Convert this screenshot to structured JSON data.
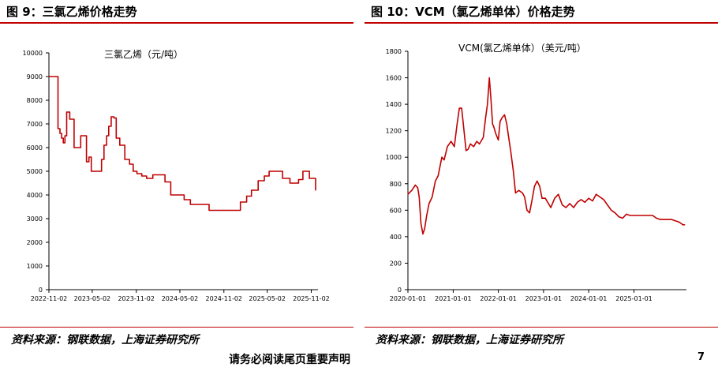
{
  "left_figure": {
    "heading": "图 9：三氯乙烯价格走势",
    "source": "资料来源：钢联数据，上海证券研究所"
  },
  "right_figure": {
    "heading": "图 10：VCM（氯乙烯单体）价格走势",
    "source": "资料来源：钢联数据，上海证券研究所"
  },
  "footer": {
    "text": "请务必阅读尾页重要声明",
    "page": "7"
  },
  "colors": {
    "accent": "#c00000",
    "line": "#c00000"
  },
  "chart_data": [
    {
      "type": "line",
      "title": "三氯乙烯（元/吨）",
      "xlabel": "",
      "ylabel": "",
      "xlim": [
        "2022-11-02",
        "2025-11-30"
      ],
      "ylim": [
        0,
        10000
      ],
      "yticks": [
        0,
        1000,
        2000,
        3000,
        4000,
        5000,
        6000,
        7000,
        8000,
        9000,
        10000
      ],
      "xticks": [
        "2022-11-02",
        "2023-05-02",
        "2023-11-02",
        "2024-05-02",
        "2024-11-02",
        "2025-05-02",
        "2025-11-02"
      ],
      "step": true,
      "grid": false,
      "x": [
        "2022-11-02",
        "2022-12-10",
        "2022-12-18",
        "2022-12-25",
        "2023-01-01",
        "2023-01-08",
        "2023-01-15",
        "2023-01-28",
        "2023-02-15",
        "2023-02-22",
        "2023-03-15",
        "2023-04-08",
        "2023-04-18",
        "2023-04-28",
        "2023-05-10",
        "2023-06-10",
        "2023-06-20",
        "2023-07-01",
        "2023-07-10",
        "2023-07-20",
        "2023-08-01",
        "2023-08-10",
        "2023-08-25",
        "2023-09-15",
        "2023-10-05",
        "2023-10-20",
        "2023-11-05",
        "2023-11-25",
        "2023-12-15",
        "2024-01-10",
        "2024-02-01",
        "2024-03-01",
        "2024-03-25",
        "2024-05-20",
        "2024-06-15",
        "2024-07-25",
        "2024-09-01",
        "2024-10-25",
        "2025-01-10",
        "2025-02-05",
        "2025-02-25",
        "2025-03-25",
        "2025-04-20",
        "2025-05-10",
        "2025-07-05",
        "2025-08-05",
        "2025-09-10",
        "2025-09-28",
        "2025-10-25",
        "2025-11-20"
      ],
      "values": [
        9000,
        6800,
        6600,
        6400,
        6200,
        6500,
        7500,
        7200,
        6000,
        6000,
        6500,
        5400,
        5600,
        5000,
        5000,
        5500,
        6100,
        6500,
        6900,
        7300,
        7250,
        6400,
        6100,
        5500,
        5300,
        5000,
        4900,
        4800,
        4700,
        4850,
        4850,
        4550,
        4000,
        3800,
        3600,
        3600,
        3350,
        3350,
        3700,
        3950,
        4200,
        4600,
        4800,
        5000,
        4700,
        4500,
        4650,
        5000,
        4700,
        4200
      ],
      "series": [
        {
          "name": "",
          "color": "#c00000"
        }
      ]
    },
    {
      "type": "line",
      "title": "VCM(氯乙烯单体）（美元/吨）",
      "xlabel": "",
      "ylabel": "",
      "xlim": [
        "2020-01-01",
        "2026-03-01"
      ],
      "ylim": [
        0,
        1800
      ],
      "yticks": [
        0,
        200,
        400,
        600,
        800,
        1000,
        1200,
        1400,
        1600,
        1800
      ],
      "xticks": [
        "2020-01-01",
        "2021-01-01",
        "2022-01-01",
        "2023-01-01",
        "2024-01-01",
        "2025-01-01"
      ],
      "step": false,
      "grid": false,
      "x": [
        "2020-01-01",
        "2020-02-01",
        "2020-03-01",
        "2020-03-20",
        "2020-04-01",
        "2020-04-15",
        "2020-05-01",
        "2020-05-15",
        "2020-06-01",
        "2020-06-20",
        "2020-07-15",
        "2020-08-10",
        "2020-09-01",
        "2020-10-01",
        "2020-10-20",
        "2020-11-15",
        "2020-12-15",
        "2021-01-10",
        "2021-02-01",
        "2021-02-20",
        "2021-03-10",
        "2021-03-25",
        "2021-04-15",
        "2021-05-01",
        "2021-05-20",
        "2021-06-15",
        "2021-07-10",
        "2021-08-01",
        "2021-09-01",
        "2021-09-20",
        "2021-10-05",
        "2021-10-20",
        "2021-11-01",
        "2021-11-15",
        "2021-11-25",
        "2021-12-10",
        "2022-01-01",
        "2022-01-15",
        "2022-02-01",
        "2022-02-20",
        "2022-03-10",
        "2022-03-25",
        "2022-04-10",
        "2022-05-01",
        "2022-05-20",
        "2022-06-15",
        "2022-07-15",
        "2022-08-01",
        "2022-08-20",
        "2022-09-10",
        "2022-10-01",
        "2022-10-20",
        "2022-11-10",
        "2022-12-01",
        "2022-12-20",
        "2023-01-15",
        "2023-02-10",
        "2023-03-01",
        "2023-04-01",
        "2023-05-01",
        "2023-06-01",
        "2023-07-01",
        "2023-08-01",
        "2023-09-01",
        "2023-10-01",
        "2023-11-01",
        "2023-12-01",
        "2024-01-01",
        "2024-02-01",
        "2024-03-01",
        "2024-04-01",
        "2024-05-01",
        "2024-06-01",
        "2024-07-01",
        "2024-08-01",
        "2024-09-01",
        "2024-10-01",
        "2024-11-01",
        "2024-12-01",
        "2025-01-01",
        "2025-02-01",
        "2025-03-01",
        "2025-04-01",
        "2025-05-01",
        "2025-06-01",
        "2025-07-01",
        "2025-08-01",
        "2025-09-01",
        "2025-10-01",
        "2025-11-01",
        "2025-12-01",
        "2026-01-01",
        "2026-02-01",
        "2026-02-15"
      ],
      "values": [
        720,
        750,
        790,
        770,
        700,
        500,
        420,
        460,
        560,
        650,
        700,
        820,
        860,
        1000,
        980,
        1080,
        1120,
        1080,
        1250,
        1370,
        1370,
        1240,
        1050,
        1060,
        1100,
        1080,
        1120,
        1100,
        1150,
        1300,
        1400,
        1600,
        1450,
        1250,
        1230,
        1180,
        1130,
        1270,
        1300,
        1320,
        1250,
        1150,
        1050,
        900,
        730,
        750,
        730,
        700,
        600,
        580,
        680,
        780,
        820,
        780,
        690,
        690,
        650,
        620,
        690,
        720,
        640,
        620,
        650,
        620,
        660,
        680,
        660,
        690,
        670,
        720,
        700,
        680,
        640,
        600,
        580,
        550,
        540,
        570,
        560,
        560,
        560,
        560,
        560,
        560,
        560,
        540,
        530,
        530,
        530,
        530,
        520,
        510,
        490,
        490
      ],
      "series": [
        {
          "name": "",
          "color": "#c00000"
        }
      ]
    }
  ]
}
